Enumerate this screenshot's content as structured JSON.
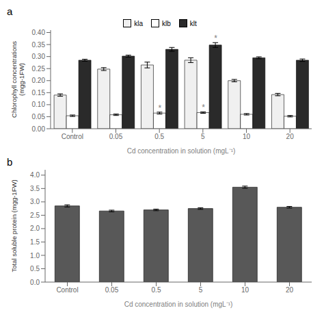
{
  "chart_data": [
    {
      "type": "bar",
      "title": "a",
      "categories": [
        "Control",
        "0.05",
        "0.5",
        "5",
        "10",
        "20"
      ],
      "series": [
        {
          "name": "kla",
          "color": "#f0f0f0",
          "values": [
            0.14,
            0.248,
            0.265,
            0.285,
            0.2,
            0.142
          ],
          "errors": [
            0.005,
            0.006,
            0.012,
            0.01,
            0.005,
            0.005
          ]
        },
        {
          "name": "klb",
          "color": "#ffffff",
          "values": [
            0.054,
            0.058,
            0.065,
            0.067,
            0.06,
            0.052
          ],
          "errors": [
            0.003,
            0.003,
            0.004,
            0.003,
            0.003,
            0.003
          ]
        },
        {
          "name": "klt",
          "color": "#2a2a2a",
          "values": [
            0.285,
            0.302,
            0.33,
            0.348,
            0.295,
            0.285
          ],
          "errors": [
            0.004,
            0.004,
            0.008,
            0.01,
            0.004,
            0.005
          ]
        }
      ],
      "xlabel": "Cd concentration in solution (mgL⁻¹)",
      "ylabel": "Chlorophyll concentrations\n(mgg-1FW)",
      "ylim": [
        0,
        0.41
      ],
      "yticks": [
        {
          "value": 0,
          "label": "0.00"
        },
        0.05,
        {
          "value": 0.1,
          "label": "0.10"
        },
        0.15,
        {
          "value": 0.2,
          "label": "0.20"
        },
        0.25,
        {
          "value": 0.3,
          "label": "0.30"
        },
        0.35,
        {
          "value": 0.4,
          "label": "0.40"
        }
      ],
      "grid": false,
      "legend": "upper center",
      "annotations": [
        {
          "text": "*",
          "series": "klb",
          "category": "0.5"
        },
        {
          "text": "*",
          "series": "klb",
          "category": "5"
        },
        {
          "text": "*",
          "series": "klt",
          "category": "5"
        }
      ]
    },
    {
      "type": "bar",
      "title": "b",
      "categories": [
        "Control",
        "0.05",
        "0.5",
        "5",
        "10",
        "20"
      ],
      "values": [
        2.85,
        2.66,
        2.7,
        2.75,
        3.55,
        2.8
      ],
      "errors": [
        0.04,
        0.03,
        0.03,
        0.03,
        0.04,
        0.03
      ],
      "color": "#585858",
      "xlabel": "Cd concentration in solution (mgL⁻¹)",
      "ylabel": "Total soluble protein (mgg-1FW)",
      "ylim": [
        0,
        4.2
      ],
      "yticks": [
        {
          "value": 0,
          "label": "0.0"
        },
        0.5,
        {
          "value": 1.0,
          "label": "1.0"
        },
        1.5,
        {
          "value": 2.0,
          "label": "2.0"
        },
        2.5,
        {
          "value": 3.0,
          "label": "3.0"
        },
        3.5,
        {
          "value": 4.0,
          "label": "4.0"
        }
      ],
      "grid": false
    }
  ]
}
